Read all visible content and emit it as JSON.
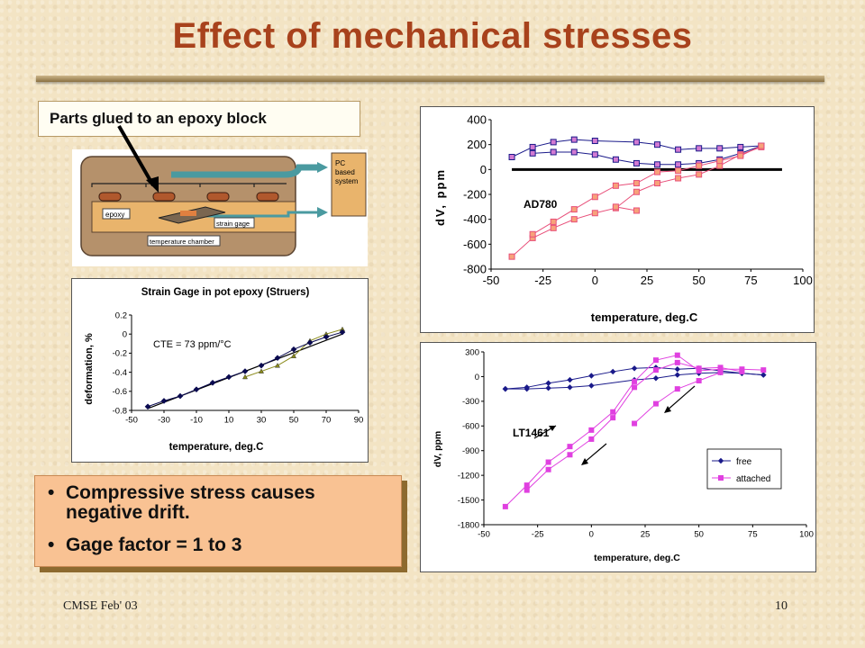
{
  "slide": {
    "title": "Effect of mechanical stresses",
    "callout": "Parts glued to an epoxy block",
    "footer_left": "CMSE Feb' 03",
    "footer_right": "10",
    "bullets": [
      "Compressive stress causes negative drift.",
      "Gage factor = 1 to 3"
    ]
  },
  "diagram": {
    "labels": {
      "epoxy": "epoxy",
      "strain_gage": "strain gage",
      "chamber": "temperature chamber",
      "pc": [
        "PC",
        "based",
        "system"
      ]
    },
    "colors": {
      "chamber": "#b5916b",
      "epoxy": "#e9b46c",
      "cable": "#4a9aa0",
      "part": "#b0582d"
    }
  },
  "chart_data": [
    {
      "id": "strain",
      "type": "scatter",
      "title": "Strain Gage in pot epoxy (Struers)",
      "xlabel": "temperature, deg.C",
      "ylabel": "deformation, %",
      "xlim": [
        -50,
        90
      ],
      "ylim": [
        -0.8,
        0.2
      ],
      "xticks": [
        -50,
        -30,
        -10,
        10,
        30,
        50,
        70,
        90
      ],
      "yticks": [
        0.2,
        0,
        -0.2,
        -0.4,
        -0.6,
        -0.8
      ],
      "annotation": "CTE = 73 ppm/°C",
      "series": [
        {
          "color": "#0a0a50",
          "marker": "diamond",
          "x": [
            -40,
            -30,
            -20,
            -10,
            0,
            10,
            20
          ],
          "y": [
            -0.76,
            -0.7,
            -0.65,
            -0.58,
            -0.51,
            -0.45,
            -0.39
          ]
        },
        {
          "color": "#8a8a1a",
          "marker": "triangle",
          "x": [
            20,
            30,
            40,
            50,
            60,
            70,
            80
          ],
          "y": [
            -0.45,
            -0.39,
            -0.33,
            -0.23,
            -0.07,
            0.0,
            0.05
          ]
        },
        {
          "color": "#0a0a50",
          "marker": "diamond",
          "x": [
            30,
            40,
            50,
            60,
            70,
            80
          ],
          "y": [
            -0.33,
            -0.25,
            -0.16,
            -0.09,
            -0.03,
            0.02
          ]
        }
      ],
      "fit": {
        "x": [
          -40,
          80
        ],
        "y": [
          -0.78,
          0.0
        ]
      }
    },
    {
      "id": "ad780",
      "type": "line",
      "xlabel": "temperature, deg.C",
      "ylabel": "dV, ppm",
      "xlim": [
        -50,
        100
      ],
      "ylim": [
        -800,
        400
      ],
      "xticks": [
        -50,
        -25,
        0,
        25,
        50,
        75,
        100
      ],
      "yticks": [
        400,
        200,
        0,
        -200,
        -400,
        -600,
        -800
      ],
      "annotation": "AD780",
      "series": [
        {
          "color": "#1a1a8a",
          "marker": "square",
          "fill": "#d27ad2",
          "x": [
            -40,
            -30,
            -20,
            -10,
            0,
            20,
            30,
            40,
            50,
            60,
            70,
            80
          ],
          "y": [
            100,
            180,
            220,
            240,
            230,
            220,
            200,
            160,
            170,
            170,
            180,
            190
          ]
        },
        {
          "color": "#1a1a8a",
          "marker": "square",
          "fill": "#d27ad2",
          "x": [
            -30,
            -20,
            -10,
            0,
            10,
            20,
            30,
            40,
            50,
            60,
            70,
            80
          ],
          "y": [
            130,
            140,
            140,
            120,
            80,
            50,
            40,
            40,
            50,
            80,
            130,
            190
          ]
        },
        {
          "color": "#e8507a",
          "marker": "square",
          "fill": "#f7a27a",
          "x": [
            -40,
            -30,
            -20,
            -10,
            0,
            10,
            20,
            30,
            40,
            50,
            60,
            70,
            80
          ],
          "y": [
            -700,
            -550,
            -470,
            -400,
            -350,
            -310,
            -180,
            -110,
            -70,
            -40,
            30,
            120,
            180
          ]
        },
        {
          "color": "#e8507a",
          "marker": "square",
          "fill": "#f7a27a",
          "x": [
            -30,
            -20,
            -10,
            0,
            10,
            20,
            30,
            40,
            50,
            60,
            70,
            80
          ],
          "y": [
            -520,
            -420,
            -320,
            -220,
            -130,
            -110,
            -20,
            -10,
            30,
            70,
            110,
            190
          ]
        },
        {
          "color": "#e8507a",
          "marker": "square",
          "fill": "#f7a27a",
          "x": [
            10,
            20
          ],
          "y": [
            -300,
            -330
          ]
        }
      ],
      "zero_line": {
        "x": [
          -40,
          90
        ],
        "y": [
          0,
          0
        ]
      }
    },
    {
      "id": "lt1461",
      "type": "line",
      "xlabel": "temperature, deg.C",
      "ylabel": "dV, ppm",
      "xlim": [
        -50,
        100
      ],
      "ylim": [
        -1800,
        300
      ],
      "xticks": [
        -50,
        -25,
        0,
        25,
        50,
        75,
        100
      ],
      "yticks": [
        300,
        0,
        -300,
        -600,
        -900,
        -1200,
        -1500,
        -1800
      ],
      "annotation": "LT1461",
      "legend": {
        "position": "right",
        "entries": [
          "free",
          "attached"
        ]
      },
      "series": [
        {
          "name": "free",
          "color": "#1a1a8a",
          "marker": "diamond",
          "x": [
            -40,
            -30,
            -20,
            -10,
            0,
            10,
            20,
            30,
            40,
            50,
            60,
            70,
            80
          ],
          "y": [
            -150,
            -130,
            -80,
            -40,
            10,
            60,
            100,
            110,
            90,
            100,
            70,
            40,
            20
          ]
        },
        {
          "name": "free",
          "color": "#1a1a8a",
          "marker": "diamond",
          "x": [
            -40,
            -30,
            -20,
            -10,
            0,
            20,
            30,
            40,
            50,
            60,
            70,
            80
          ],
          "y": [
            -150,
            -150,
            -140,
            -130,
            -110,
            -40,
            -20,
            20,
            40,
            50,
            40,
            20
          ]
        },
        {
          "name": "attached",
          "color": "#e040e0",
          "marker": "square",
          "x": [
            -40,
            -30,
            -20,
            -10,
            0,
            10,
            20,
            30,
            40,
            50,
            60,
            70,
            80
          ],
          "y": [
            -1580,
            -1320,
            -1040,
            -850,
            -650,
            -430,
            -60,
            200,
            260,
            70,
            90,
            90,
            80
          ]
        },
        {
          "name": "attached",
          "color": "#e040e0",
          "marker": "square",
          "x": [
            -30,
            -20,
            -10,
            0,
            10,
            20,
            30,
            40,
            50,
            60,
            70
          ],
          "y": [
            -1380,
            -1130,
            -950,
            -760,
            -500,
            -130,
            80,
            170,
            100,
            110,
            60
          ]
        },
        {
          "name": "attached",
          "color": "#e040e0",
          "marker": "square",
          "x": [
            20,
            30,
            40,
            50,
            60
          ],
          "y": [
            -570,
            -330,
            -150,
            -50,
            50
          ]
        }
      ]
    }
  ]
}
